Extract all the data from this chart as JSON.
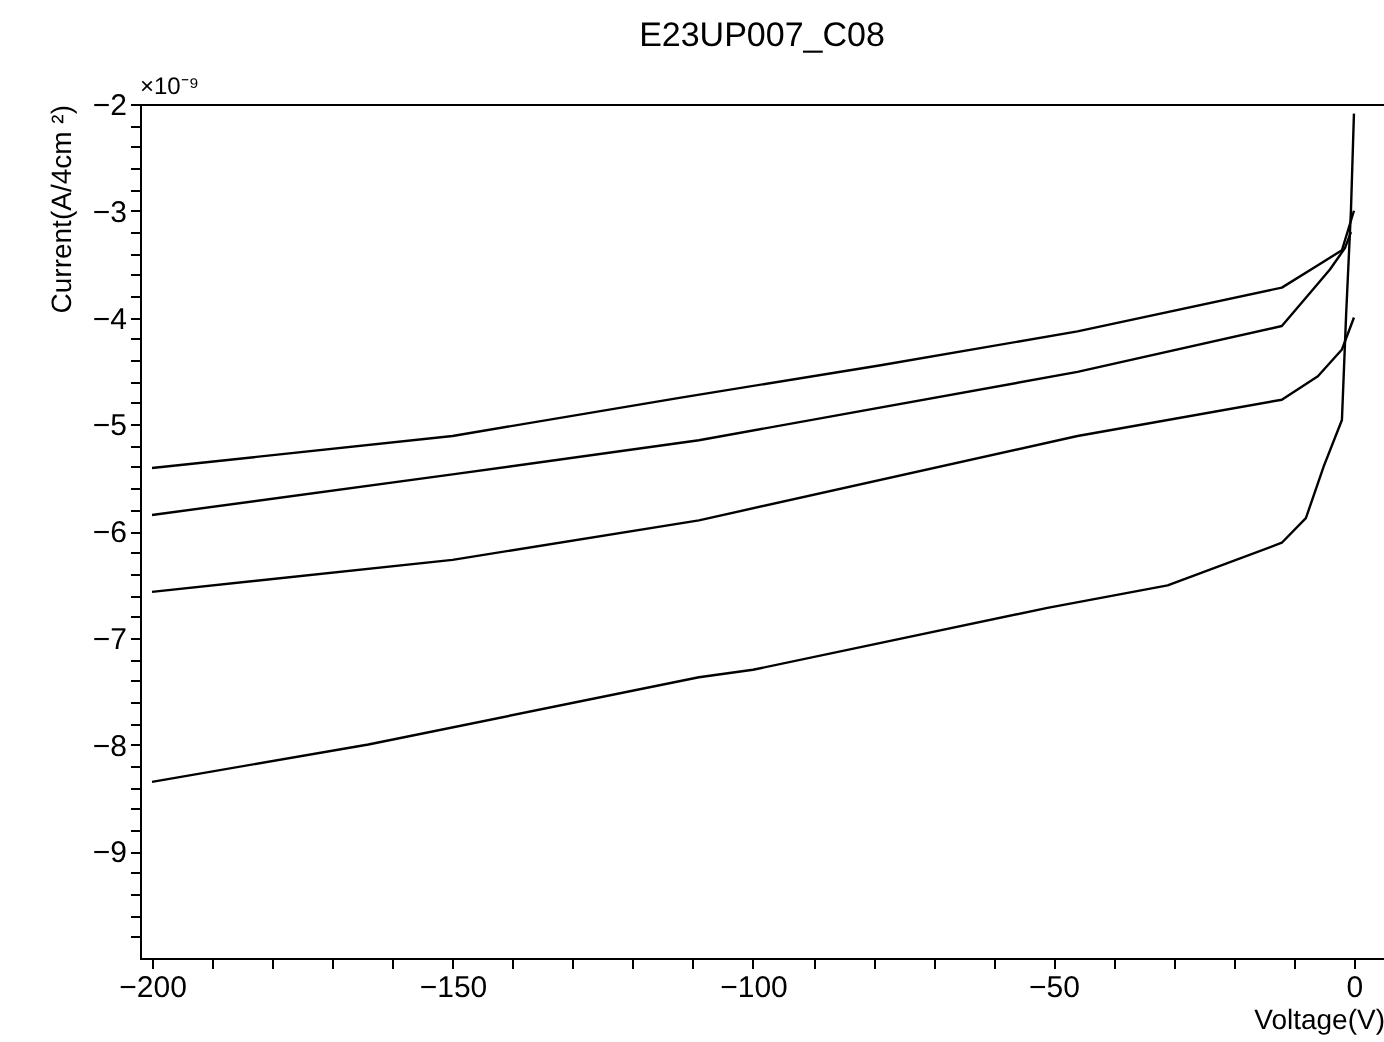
{
  "chart_data": {
    "type": "line",
    "title": "E23UP007_C08",
    "xlabel": "Voltage(V)",
    "ylabel": "Current(A/4cm ²)",
    "annotations": [
      "×10⁻⁹"
    ],
    "xlim": [
      -202,
      5
    ],
    "ylim": [
      -10,
      -2
    ],
    "xticks": [
      {
        "value": -200,
        "label": "−200"
      },
      {
        "value": -190,
        "label": null
      },
      {
        "value": -180,
        "label": null
      },
      {
        "value": -170,
        "label": null
      },
      {
        "value": -160,
        "label": null
      },
      {
        "value": -150,
        "label": "−150"
      },
      {
        "value": -140,
        "label": null
      },
      {
        "value": -130,
        "label": null
      },
      {
        "value": -120,
        "label": null
      },
      {
        "value": -110,
        "label": null
      },
      {
        "value": -100,
        "label": "−100"
      },
      {
        "value": -90,
        "label": null
      },
      {
        "value": -80,
        "label": null
      },
      {
        "value": -70,
        "label": null
      },
      {
        "value": -60,
        "label": null
      },
      {
        "value": -50,
        "label": "−50"
      },
      {
        "value": -40,
        "label": null
      },
      {
        "value": -30,
        "label": null
      },
      {
        "value": -20,
        "label": null
      },
      {
        "value": -10,
        "label": null
      },
      0
    ],
    "yticks": [
      {
        "value": -2,
        "label": "−2"
      },
      {
        "value": -2.2,
        "label": null
      },
      {
        "value": -2.4,
        "label": null
      },
      {
        "value": -2.6,
        "label": null
      },
      {
        "value": -2.8,
        "label": null
      },
      {
        "value": -3,
        "label": "−3"
      },
      {
        "value": -3.2,
        "label": null
      },
      {
        "value": -3.4,
        "label": null
      },
      {
        "value": -3.6,
        "label": null
      },
      {
        "value": -3.8,
        "label": null
      },
      {
        "value": -4,
        "label": "−4"
      },
      {
        "value": -4.2,
        "label": null
      },
      {
        "value": -4.4,
        "label": null
      },
      {
        "value": -4.6,
        "label": null
      },
      {
        "value": -4.8,
        "label": null
      },
      {
        "value": -5,
        "label": "−5"
      },
      {
        "value": -5.2,
        "label": null
      },
      {
        "value": -5.4,
        "label": null
      },
      {
        "value": -5.6,
        "label": null
      },
      {
        "value": -5.8,
        "label": null
      },
      {
        "value": -6,
        "label": "−6"
      },
      {
        "value": -6.2,
        "label": null
      },
      {
        "value": -6.4,
        "label": null
      },
      {
        "value": -6.6,
        "label": null
      },
      {
        "value": -6.8,
        "label": null
      },
      {
        "value": -7,
        "label": "−7"
      },
      {
        "value": -7.2,
        "label": null
      },
      {
        "value": -7.4,
        "label": null
      },
      {
        "value": -7.6,
        "label": null
      },
      {
        "value": -7.8,
        "label": null
      },
      {
        "value": -8,
        "label": "−8"
      },
      {
        "value": -8.2,
        "label": null
      },
      {
        "value": -8.4,
        "label": null
      },
      {
        "value": -8.6,
        "label": null
      },
      {
        "value": -8.8,
        "label": null
      },
      {
        "value": -9,
        "label": "−9"
      },
      {
        "value": -9.2,
        "label": null
      },
      {
        "value": -9.4,
        "label": null
      },
      {
        "value": -9.6,
        "label": null
      },
      {
        "value": -9.8,
        "label": null
      }
    ],
    "grid": false,
    "legend": false,
    "marker": "none",
    "line_style": "solid",
    "series": [
      {
        "color": "#000000",
        "x": [
          -200,
          -150,
          -112,
          -79,
          -46,
          -12,
          -6,
          -2,
          0
        ],
        "values": [
          -5.41,
          -5.11,
          -4.75,
          -4.45,
          -4.13,
          -3.72,
          -3.51,
          -3.37,
          -3.0
        ]
      },
      {
        "color": "#000000",
        "x": [
          -200,
          -150,
          -109,
          -46,
          -12,
          -7,
          -4,
          -1.5,
          -0.5
        ],
        "values": [
          -5.85,
          -5.47,
          -5.15,
          -4.51,
          -4.08,
          -3.75,
          -3.55,
          -3.35,
          -3.2
        ]
      },
      {
        "color": "#000000",
        "x": [
          -200,
          -150,
          -109,
          -46,
          -12,
          -6,
          -2,
          0
        ],
        "values": [
          -6.57,
          -6.27,
          -5.9,
          -5.11,
          -4.77,
          -4.55,
          -4.3,
          -4.0
        ]
      },
      {
        "color": "#000000",
        "x": [
          -200,
          -164,
          -109,
          -100,
          -51,
          -31,
          -12,
          -8,
          -5,
          -2,
          -1.3,
          -0.5,
          0
        ],
        "values": [
          -8.35,
          -8.0,
          -7.37,
          -7.3,
          -6.72,
          -6.51,
          -6.11,
          -5.88,
          -5.39,
          -4.96,
          -3.97,
          -3.0,
          -2.09
        ]
      }
    ]
  }
}
